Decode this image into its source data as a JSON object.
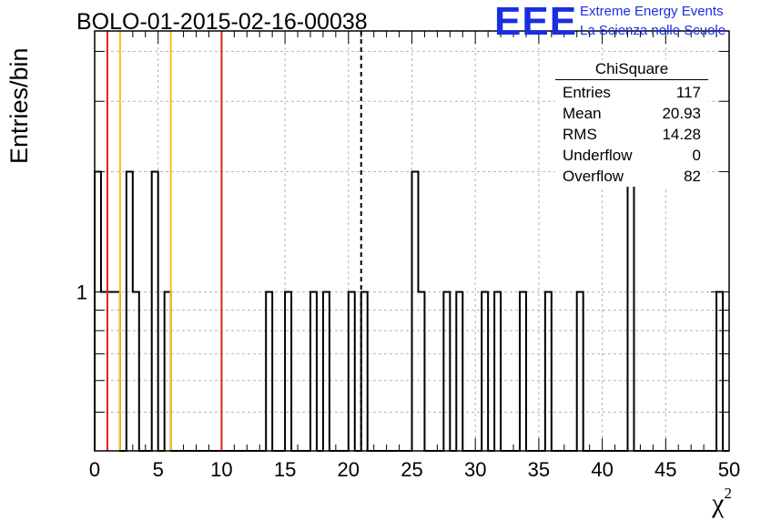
{
  "chart_data": {
    "type": "histogram",
    "title": "BOLO-01-2015-02-16-00038",
    "xlabel": "χ",
    "xlabel_sup": "2",
    "ylabel": "Entries/bin",
    "xlim": [
      0,
      50
    ],
    "ylim": [
      0.4,
      4.5
    ],
    "ylog": true,
    "grid": true,
    "xticks": [
      "0",
      "5",
      "10",
      "15",
      "20",
      "25",
      "30",
      "35",
      "40",
      "45",
      "50"
    ],
    "yticks": [
      "1"
    ],
    "bin_width": 0.5,
    "bins": [
      {
        "x0": 0.0,
        "count": 2
      },
      {
        "x0": 0.5,
        "count": 1
      },
      {
        "x0": 1.0,
        "count": 1
      },
      {
        "x0": 1.5,
        "count": 1
      },
      {
        "x0": 2.0,
        "count": 0
      },
      {
        "x0": 2.5,
        "count": 2
      },
      {
        "x0": 3.0,
        "count": 1
      },
      {
        "x0": 4.5,
        "count": 2
      },
      {
        "x0": 5.5,
        "count": 1
      },
      {
        "x0": 13.5,
        "count": 1
      },
      {
        "x0": 15.0,
        "count": 1
      },
      {
        "x0": 17.0,
        "count": 1
      },
      {
        "x0": 18.0,
        "count": 1
      },
      {
        "x0": 20.0,
        "count": 1
      },
      {
        "x0": 21.0,
        "count": 1
      },
      {
        "x0": 25.0,
        "count": 2
      },
      {
        "x0": 25.5,
        "count": 1
      },
      {
        "x0": 27.5,
        "count": 1
      },
      {
        "x0": 28.5,
        "count": 1
      },
      {
        "x0": 30.5,
        "count": 1
      },
      {
        "x0": 31.5,
        "count": 1
      },
      {
        "x0": 33.5,
        "count": 1
      },
      {
        "x0": 35.5,
        "count": 1
      },
      {
        "x0": 38.0,
        "count": 1
      },
      {
        "x0": 42.0,
        "count": 2
      },
      {
        "x0": 49.0,
        "count": 1
      }
    ],
    "vertical_lines": [
      {
        "x": 1,
        "color": "#e02020",
        "style": "solid"
      },
      {
        "x": 2,
        "color": "#f2c21b",
        "style": "solid"
      },
      {
        "x": 6,
        "color": "#f2c21b",
        "style": "solid"
      },
      {
        "x": 10,
        "color": "#e02020",
        "style": "solid"
      },
      {
        "x": 21,
        "color": "#000000",
        "style": "dashed"
      }
    ],
    "stats_box": {
      "name": "ChiSquare",
      "rows": [
        {
          "label": "Entries",
          "value": "117"
        },
        {
          "label": "Mean",
          "value": "20.93"
        },
        {
          "label": "RMS",
          "value": "14.28"
        },
        {
          "label": "Underflow",
          "value": "0"
        },
        {
          "label": "Overflow",
          "value": "82"
        }
      ]
    }
  },
  "logo": {
    "mark": "EEE",
    "line1": "Extreme Energy Events",
    "line2": "La Scienza nelle Scuole"
  }
}
